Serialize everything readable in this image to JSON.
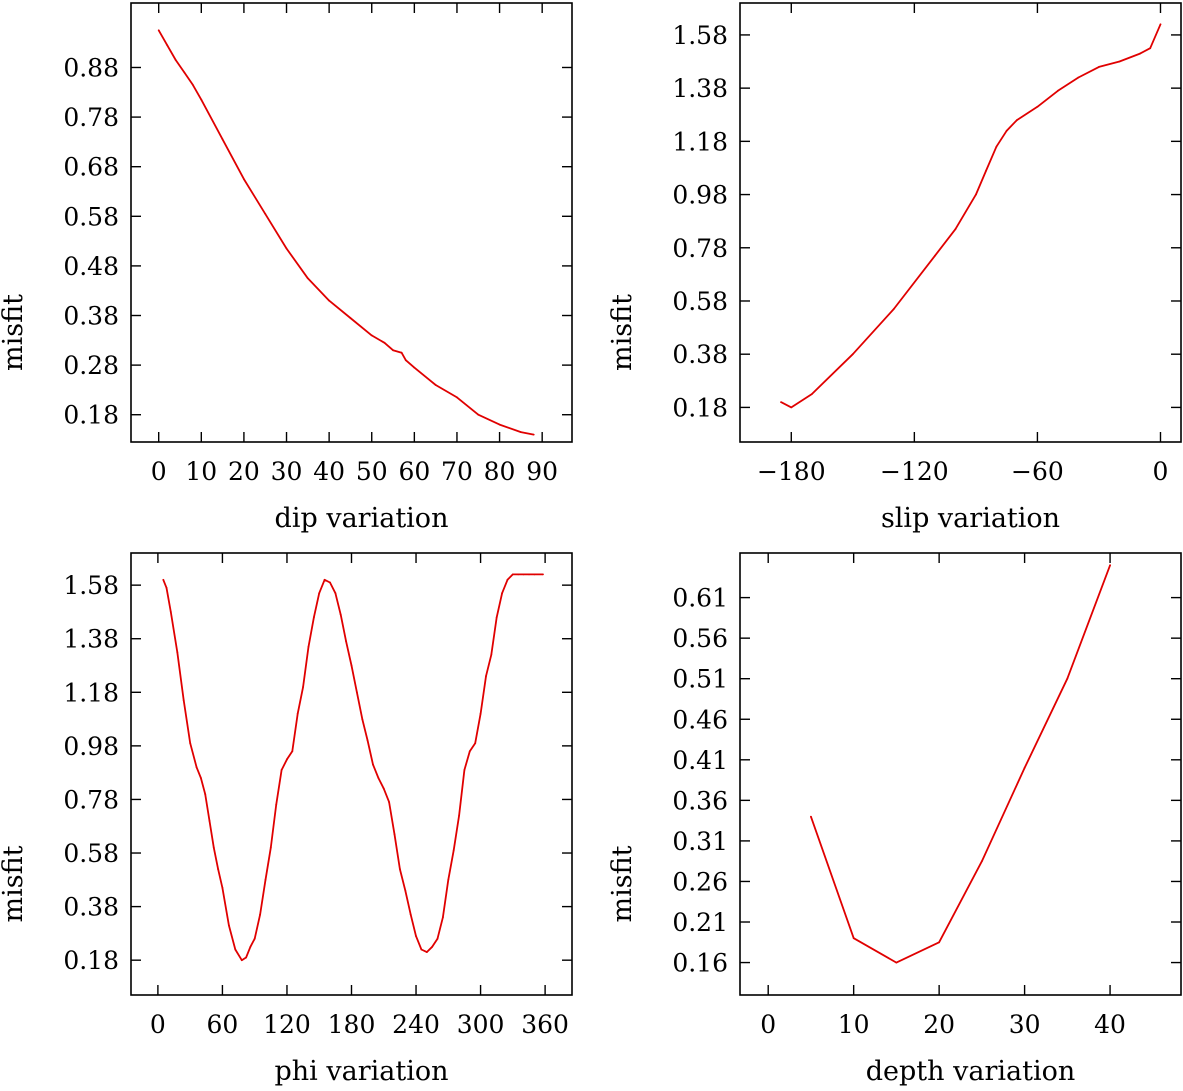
{
  "chart_data": [
    {
      "type": "line",
      "xlabel": "dip    variation",
      "ylabel": "misfit",
      "xlim": [
        -6.5,
        97
      ],
      "ylim": [
        0.125,
        1.01
      ],
      "xticks": [
        0,
        10,
        20,
        30,
        40,
        50,
        60,
        70,
        80,
        90
      ],
      "yticks": [
        0.18,
        0.28,
        0.38,
        0.48,
        0.58,
        0.68,
        0.78,
        0.88
      ],
      "ytick_labels": [
        "0.18",
        "0.28",
        "0.38",
        "0.48",
        "0.58",
        "0.68",
        "0.78",
        "0.88"
      ],
      "x": [
        0,
        2,
        4,
        6,
        8,
        10,
        15,
        20,
        25,
        30,
        35,
        40,
        45,
        50,
        53,
        55,
        57,
        58,
        60,
        65,
        70,
        75,
        80,
        85,
        88
      ],
      "y": [
        0.955,
        0.925,
        0.895,
        0.87,
        0.845,
        0.815,
        0.735,
        0.655,
        0.585,
        0.515,
        0.455,
        0.41,
        0.375,
        0.34,
        0.325,
        0.31,
        0.305,
        0.29,
        0.275,
        0.24,
        0.215,
        0.18,
        0.16,
        0.145,
        0.14
      ]
    },
    {
      "type": "line",
      "xlabel": "slip    variation",
      "ylabel": "misfit",
      "xlim": [
        -205,
        10
      ],
      "ylim": [
        0.05,
        1.7
      ],
      "xticks": [
        -180,
        -120,
        -60,
        0
      ],
      "yticks": [
        0.18,
        0.38,
        0.58,
        0.78,
        0.98,
        1.18,
        1.38,
        1.58
      ],
      "ytick_labels": [
        "0.18",
        "0.38",
        "0.58",
        "0.78",
        "0.98",
        "1.18",
        "1.38",
        "1.58"
      ],
      "x": [
        -185,
        -180,
        -170,
        -150,
        -130,
        -110,
        -100,
        -90,
        -85,
        -80,
        -75,
        -70,
        -60,
        -50,
        -40,
        -30,
        -20,
        -10,
        -5,
        0
      ],
      "y": [
        0.2,
        0.18,
        0.23,
        0.38,
        0.55,
        0.75,
        0.85,
        0.98,
        1.07,
        1.16,
        1.22,
        1.26,
        1.31,
        1.37,
        1.42,
        1.46,
        1.48,
        1.51,
        1.53,
        1.62
      ]
    },
    {
      "type": "line",
      "xlabel": "phi    variation",
      "ylabel": "misfit",
      "xlim": [
        -25,
        385
      ],
      "ylim": [
        0.05,
        1.7
      ],
      "xticks": [
        0,
        60,
        120,
        180,
        240,
        300,
        360
      ],
      "yticks": [
        0.18,
        0.38,
        0.58,
        0.78,
        0.98,
        1.18,
        1.38,
        1.58
      ],
      "ytick_labels": [
        "0.18",
        "0.38",
        "0.58",
        "0.78",
        "0.98",
        "1.18",
        "1.38",
        "1.58"
      ],
      "x": [
        5,
        8,
        12,
        18,
        24,
        30,
        36,
        40,
        44,
        48,
        52,
        56,
        60,
        66,
        72,
        78,
        82,
        86,
        90,
        95,
        100,
        105,
        110,
        115,
        120,
        125,
        130,
        135,
        140,
        145,
        150,
        155,
        160,
        165,
        170,
        175,
        180,
        185,
        190,
        195,
        200,
        205,
        210,
        215,
        220,
        225,
        230,
        235,
        240,
        245,
        250,
        255,
        260,
        265,
        270,
        275,
        280,
        285,
        290,
        295,
        300,
        305,
        310,
        315,
        320,
        325,
        330,
        335,
        340,
        345,
        350,
        358
      ],
      "y": [
        1.6,
        1.57,
        1.48,
        1.33,
        1.15,
        0.99,
        0.9,
        0.86,
        0.8,
        0.7,
        0.6,
        0.52,
        0.45,
        0.31,
        0.22,
        0.18,
        0.19,
        0.23,
        0.26,
        0.35,
        0.48,
        0.6,
        0.76,
        0.89,
        0.93,
        0.96,
        1.1,
        1.2,
        1.35,
        1.46,
        1.55,
        1.6,
        1.59,
        1.55,
        1.47,
        1.37,
        1.28,
        1.18,
        1.08,
        1.0,
        0.91,
        0.86,
        0.82,
        0.77,
        0.65,
        0.52,
        0.44,
        0.35,
        0.27,
        0.22,
        0.21,
        0.23,
        0.26,
        0.34,
        0.48,
        0.59,
        0.72,
        0.89,
        0.96,
        0.99,
        1.1,
        1.24,
        1.32,
        1.46,
        1.55,
        1.6,
        1.62,
        1.62,
        1.62,
        1.62,
        1.62,
        1.62
      ]
    },
    {
      "type": "line",
      "xlabel": "depth    variation",
      "ylabel": "misfit",
      "xlim": [
        -3.3,
        48.3
      ],
      "ylim": [
        0.12,
        0.665
      ],
      "xticks": [
        0,
        10,
        20,
        30,
        40
      ],
      "yticks": [
        0.16,
        0.21,
        0.26,
        0.31,
        0.36,
        0.41,
        0.46,
        0.51,
        0.56,
        0.61
      ],
      "ytick_labels": [
        "0.16",
        "0.21",
        "0.26",
        "0.31",
        "0.36",
        "0.41",
        "0.46",
        "0.51",
        "0.56",
        "0.61"
      ],
      "x": [
        5,
        10,
        15,
        20,
        25,
        30,
        35,
        40
      ],
      "y": [
        0.34,
        0.19,
        0.16,
        0.185,
        0.285,
        0.4,
        0.51,
        0.65
      ]
    }
  ]
}
